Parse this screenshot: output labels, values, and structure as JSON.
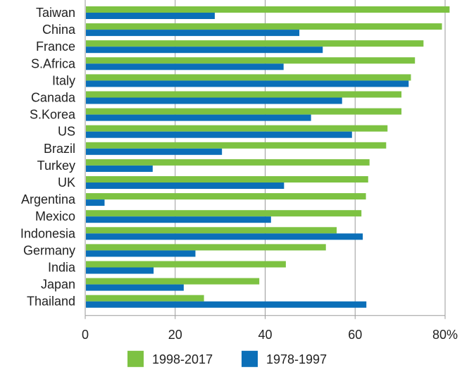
{
  "chart_data": {
    "type": "bar",
    "orientation": "horizontal",
    "categories": [
      "Taiwan",
      "China",
      "France",
      "S.Africa",
      "Italy",
      "Canada",
      "S.Korea",
      "US",
      "Brazil",
      "Turkey",
      "UK",
      "Argentina",
      "Mexico",
      "Indonesia",
      "Germany",
      "India",
      "Japan",
      "Thailand"
    ],
    "series": [
      {
        "name": "1998-2017",
        "color": "#7dc242",
        "values": [
          81.0,
          79.3,
          75.2,
          73.3,
          72.4,
          70.3,
          70.3,
          67.2,
          66.9,
          63.2,
          62.9,
          62.4,
          61.4,
          55.9,
          53.5,
          44.6,
          38.7,
          26.4
        ]
      },
      {
        "name": "1978-1997",
        "color": "#0b6fb8",
        "values": [
          28.8,
          47.6,
          52.8,
          44.1,
          71.9,
          57.1,
          50.2,
          59.3,
          30.4,
          15.0,
          44.2,
          4.3,
          41.3,
          61.7,
          24.5,
          15.2,
          21.9,
          62.5
        ]
      }
    ],
    "xlim": [
      0,
      80
    ],
    "xticks": [
      "0",
      "20",
      "40",
      "60",
      "80%"
    ],
    "grid": true,
    "legend_position": "bottom"
  }
}
